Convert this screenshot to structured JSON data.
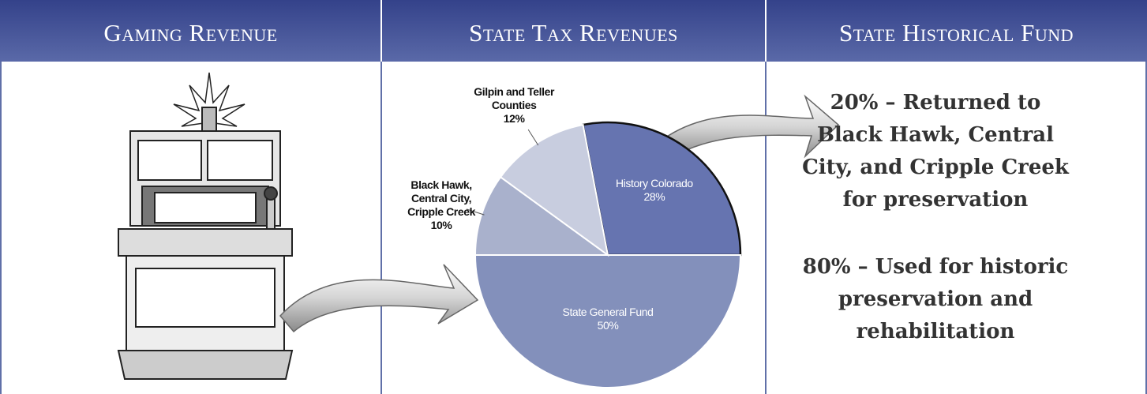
{
  "headers": [
    "Gaming Revenue",
    "State Tax Revenues",
    "State Historical Fund"
  ],
  "chart_data": {
    "type": "pie",
    "categories": [
      "History Colorado",
      "State General Fund",
      "Black Hawk, Central City, Cripple Creek",
      "Gilpin and Teller Counties"
    ],
    "values": [
      28,
      50,
      10,
      12
    ],
    "value_labels": [
      "28%",
      "50%",
      "10%",
      "12%"
    ],
    "colors": [
      "#6674b0",
      "#8390bb",
      "#a9b1cc",
      "#c8cddf"
    ]
  },
  "fund_text": [
    "20% – Returned to Black Hawk, Central City, and Cripple Creek for preservation",
    "80% – Used for historic preservation and rehabilitation"
  ]
}
